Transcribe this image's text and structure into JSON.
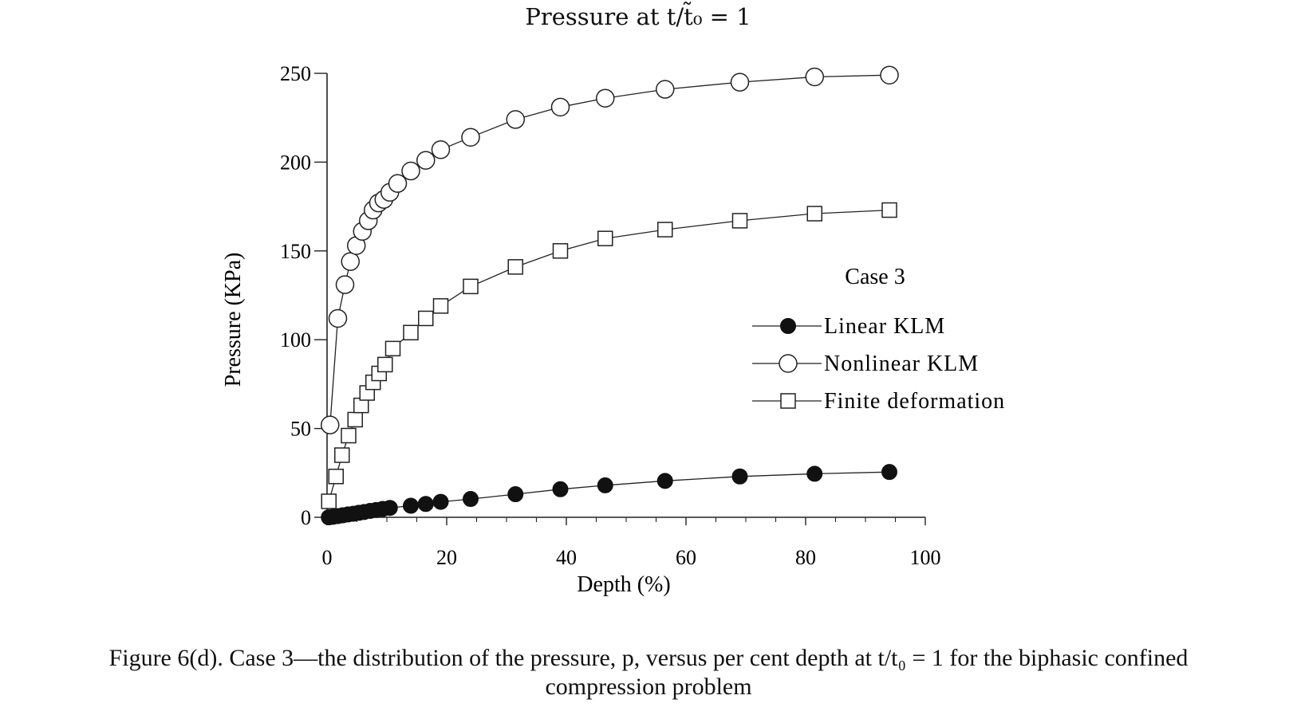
{
  "chart_data": {
    "type": "line",
    "title": "Pressure at t/t̃₀ = 1",
    "xlabel": "Depth (%)",
    "ylabel": "Pressure (KPa)",
    "xlim": [
      0,
      100
    ],
    "ylim": [
      0,
      250
    ],
    "x_ticks": [
      "0",
      "20",
      "40",
      "60",
      "80",
      "100"
    ],
    "y_ticks": [
      "0",
      "50",
      "100",
      "150",
      "200",
      "250"
    ],
    "x_tick_values": [
      0,
      20,
      40,
      60,
      80,
      100
    ],
    "y_tick_values": [
      0,
      50,
      100,
      150,
      200,
      250
    ],
    "grid": false,
    "legend_title": "Case 3",
    "legend_position": "right",
    "series": [
      {
        "name": "Linear KLM",
        "marker": "filled-circle",
        "x": [
          0.3,
          1.0,
          1.8,
          2.6,
          3.5,
          4.4,
          5.3,
          6.2,
          7.2,
          8.2,
          9.3,
          10.5,
          14,
          16.5,
          19,
          24,
          31.5,
          39,
          46.5,
          56.5,
          69,
          81.5,
          94
        ],
        "y": [
          0,
          0.3,
          0.7,
          1.1,
          1.6,
          2.0,
          2.5,
          3.0,
          3.6,
          4.1,
          4.7,
          5.3,
          6.5,
          7.5,
          8.7,
          10.3,
          13,
          15.8,
          18,
          20.5,
          23,
          24.5,
          25.5
        ]
      },
      {
        "name": "Nonlinear KLM",
        "marker": "open-circle",
        "x": [
          0.5,
          1.8,
          3,
          3.9,
          4.9,
          5.9,
          6.9,
          7.7,
          8.6,
          9.5,
          10.5,
          11.8,
          14,
          16.5,
          19,
          24,
          31.5,
          39,
          46.5,
          56.5,
          69,
          81.5,
          94
        ],
        "y": [
          52,
          112,
          131,
          144,
          153,
          161,
          167,
          173,
          177,
          179,
          183,
          188,
          195,
          201,
          207,
          214,
          224,
          231,
          236,
          241,
          245,
          248,
          249
        ]
      },
      {
        "name": "Finite deformation",
        "marker": "open-square",
        "x": [
          0.3,
          1.5,
          2.5,
          3.6,
          4.7,
          5.7,
          6.7,
          7.7,
          8.7,
          9.7,
          11,
          14,
          16.5,
          19,
          24,
          31.5,
          39,
          46.5,
          56.5,
          69,
          81.5,
          94
        ],
        "y": [
          9,
          23,
          35,
          46,
          55,
          63,
          70,
          76,
          81,
          86,
          95,
          104,
          112,
          119,
          130,
          141,
          150,
          157,
          162,
          167,
          171,
          173
        ]
      }
    ]
  },
  "caption": {
    "line1": "Figure 6(d). Case 3—the distribution of the pressure, p, versus per cent depth at t/t₀ = 1 for the biphasic confined",
    "line2": "compression problem"
  }
}
